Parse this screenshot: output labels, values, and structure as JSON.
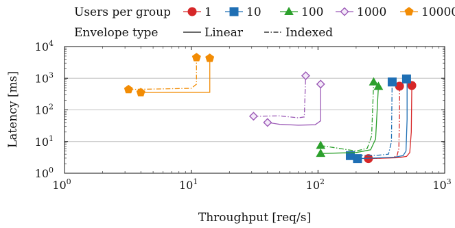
{
  "chart_data": {
    "type": "line",
    "title": "",
    "xlabel": "Throughput [req/s]",
    "ylabel": "Latency [ms]",
    "x_scale": "log",
    "y_scale": "log",
    "xlim": [
      1,
      1000
    ],
    "ylim": [
      1,
      10000
    ],
    "x_ticks": [
      {
        "base": "10",
        "exp": "0",
        "value": 1
      },
      {
        "base": "10",
        "exp": "1",
        "value": 10
      },
      {
        "base": "10",
        "exp": "2",
        "value": 100
      },
      {
        "base": "10",
        "exp": "3",
        "value": 1000
      }
    ],
    "y_ticks": [
      {
        "base": "10",
        "exp": "0",
        "value": 1
      },
      {
        "base": "10",
        "exp": "1",
        "value": 10
      },
      {
        "base": "10",
        "exp": "2",
        "value": 100
      },
      {
        "base": "10",
        "exp": "3",
        "value": 1000
      },
      {
        "base": "10",
        "exp": "4",
        "value": 10000
      }
    ],
    "grid": "horizontal major",
    "legend": {
      "placement": "top",
      "users_title": "Users per group",
      "envelope_title": "Envelope type",
      "envelope_items": [
        {
          "label": "Linear",
          "dash": "solid"
        },
        {
          "label": "Indexed",
          "dash": "dashdot"
        }
      ]
    },
    "series": [
      {
        "name": "1",
        "color": "#d62728",
        "marker": "circle",
        "linear": [
          [
            250,
            2.9
          ],
          [
            430,
            3.1
          ],
          [
            500,
            3.4
          ],
          [
            530,
            4.5
          ],
          [
            545,
            20
          ],
          [
            550,
            600
          ]
        ],
        "indexed": [
          [
            255,
            2.9
          ],
          [
            380,
            3.1
          ],
          [
            420,
            3.5
          ],
          [
            435,
            6
          ],
          [
            440,
            100
          ],
          [
            440,
            560
          ]
        ],
        "markers": [
          [
            250,
            2.9
          ],
          [
            550,
            590
          ],
          [
            440,
            560
          ]
        ]
      },
      {
        "name": "10",
        "color": "#1f6fb4",
        "marker": "square",
        "linear": [
          [
            210,
            2.9
          ],
          [
            400,
            3.2
          ],
          [
            470,
            3.6
          ],
          [
            495,
            5
          ],
          [
            505,
            50
          ],
          [
            505,
            950
          ]
        ],
        "indexed": [
          [
            175,
            3.6
          ],
          [
            300,
            3.7
          ],
          [
            360,
            4.0
          ],
          [
            380,
            10
          ],
          [
            385,
            760
          ]
        ],
        "markers": [
          [
            205,
            2.9
          ],
          [
            180,
            3.6
          ],
          [
            500,
            950
          ],
          [
            385,
            760
          ]
        ]
      },
      {
        "name": "100",
        "color": "#2ca02c",
        "marker": "triangle",
        "linear": [
          [
            105,
            4.2
          ],
          [
            200,
            4.5
          ],
          [
            260,
            5.5
          ],
          [
            285,
            12
          ],
          [
            300,
            550
          ]
        ],
        "indexed": [
          [
            105,
            7.5
          ],
          [
            150,
            6
          ],
          [
            200,
            5
          ],
          [
            245,
            6.2
          ],
          [
            265,
            15
          ],
          [
            275,
            760
          ]
        ],
        "markers": [
          [
            105,
            4.2
          ],
          [
            105,
            7.5
          ],
          [
            300,
            550
          ],
          [
            275,
            760
          ]
        ]
      },
      {
        "name": "1000",
        "color": "#9b59b6",
        "marker": "diamond",
        "linear": [
          [
            40,
            40
          ],
          [
            50,
            35
          ],
          [
            70,
            33
          ],
          [
            95,
            34
          ],
          [
            105,
            45
          ],
          [
            105,
            650
          ]
        ],
        "indexed": [
          [
            31,
            63
          ],
          [
            50,
            65
          ],
          [
            70,
            56
          ],
          [
            78,
            60
          ],
          [
            80,
            1200
          ]
        ],
        "markers": [
          [
            40,
            40
          ],
          [
            31,
            63
          ],
          [
            105,
            650
          ],
          [
            80,
            1200
          ]
        ]
      },
      {
        "name": "10000",
        "color": "#f28c05",
        "marker": "pentagon",
        "linear": [
          [
            4,
            355
          ],
          [
            7,
            360
          ],
          [
            10,
            360
          ],
          [
            14,
            360
          ],
          [
            14,
            4200
          ]
        ],
        "indexed": [
          [
            3.2,
            440
          ],
          [
            6,
            460
          ],
          [
            10,
            480
          ],
          [
            11,
            650
          ],
          [
            11,
            4500
          ]
        ],
        "markers": [
          [
            4,
            355
          ],
          [
            3.2,
            440
          ],
          [
            14,
            4300
          ],
          [
            11,
            4500
          ]
        ]
      }
    ]
  }
}
